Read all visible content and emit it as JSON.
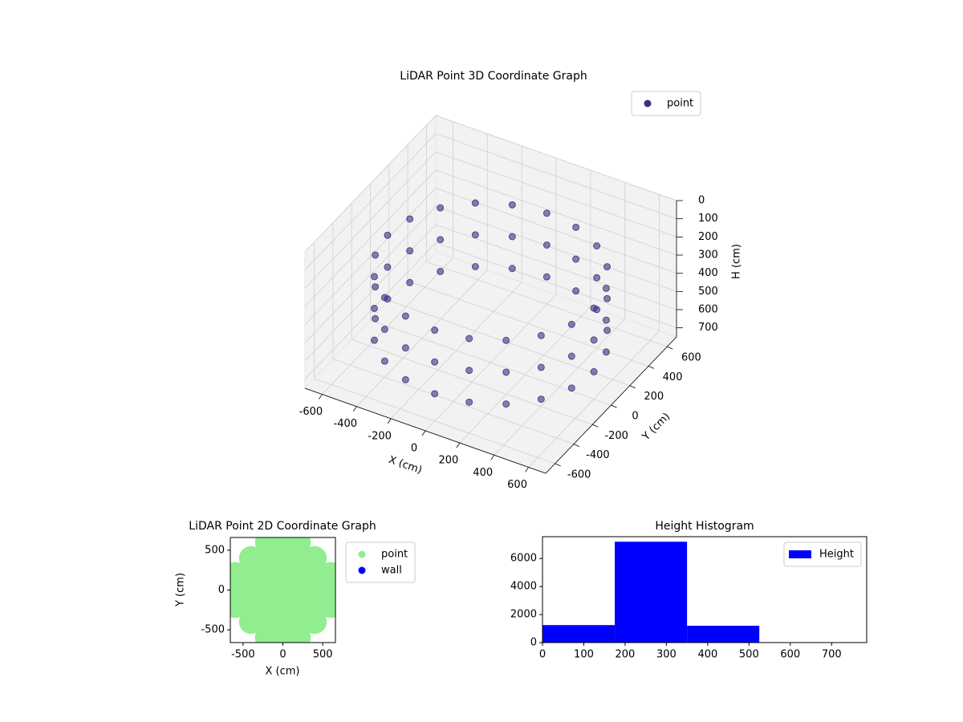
{
  "chart_data": [
    {
      "type": "scatter3d",
      "title": "LiDAR Point 3D Coordinate Graph",
      "xlabel": "X (cm)",
      "ylabel": "Y (cm)",
      "zlabel": "H (cm)",
      "xlim": [
        -700,
        700
      ],
      "ylim": [
        -700,
        700
      ],
      "zlim": [
        750,
        0
      ],
      "xticks": [
        -600,
        -400,
        -200,
        0,
        200,
        400,
        600
      ],
      "yticks": [
        -600,
        -400,
        -200,
        0,
        200,
        400,
        600
      ],
      "zticks": [
        0,
        100,
        200,
        300,
        400,
        500,
        600,
        700
      ],
      "legend": "upper right",
      "grid": true,
      "series": [
        {
          "name": "point",
          "color": "#3b2e7e",
          "x": [
            600,
            571,
            485,
            353,
            185,
            0,
            -185,
            -353,
            -485,
            -571,
            -600,
            -571,
            -485,
            -353,
            -185,
            0,
            185,
            353,
            485,
            571,
            600,
            571,
            485,
            353,
            185,
            0,
            -185,
            -353,
            -485,
            -571,
            -600,
            -571,
            -485,
            -353,
            -185,
            0,
            185,
            353,
            485,
            571,
            600,
            571,
            485,
            353,
            185,
            0,
            -185,
            -353,
            -485,
            -571,
            -600,
            -571,
            -485,
            -353,
            -185,
            0,
            185,
            353,
            485,
            571
          ],
          "y": [
            0,
            185,
            353,
            485,
            571,
            600,
            571,
            485,
            353,
            185,
            0,
            -185,
            -353,
            -485,
            -571,
            -600,
            -571,
            -485,
            -353,
            -185,
            0,
            185,
            353,
            485,
            571,
            600,
            571,
            485,
            353,
            185,
            0,
            -185,
            -353,
            -485,
            -571,
            -600,
            -571,
            -485,
            -353,
            -185,
            0,
            185,
            353,
            485,
            571,
            600,
            571,
            485,
            353,
            185,
            0,
            -185,
            -353,
            -485,
            -571,
            -600,
            -571,
            -485,
            -353,
            -185
          ],
          "z": [
            250,
            250,
            250,
            250,
            250,
            250,
            250,
            250,
            250,
            250,
            250,
            250,
            250,
            250,
            250,
            250,
            250,
            250,
            250,
            250,
            425,
            425,
            425,
            425,
            425,
            425,
            425,
            425,
            425,
            425,
            425,
            425,
            425,
            425,
            425,
            425,
            425,
            425,
            425,
            425,
            600,
            600,
            600,
            600,
            600,
            600,
            600,
            600,
            600,
            600,
            600,
            600,
            600,
            600,
            600,
            600,
            600,
            600,
            600,
            600
          ]
        }
      ]
    },
    {
      "type": "scatter",
      "title": "LiDAR Point 2D Coordinate Graph",
      "xlabel": "X (cm)",
      "ylabel": "Y (cm)",
      "xlim": [
        -660,
        660
      ],
      "ylim": [
        -660,
        660
      ],
      "xticks": [
        -500,
        0,
        500
      ],
      "yticks": [
        -500,
        0,
        500
      ],
      "legend": "outside upper left",
      "series": [
        {
          "name": "point",
          "color": "#90ee90",
          "x": [
            -600,
            -600,
            -600,
            -400,
            -400,
            -400,
            -400,
            -400,
            -200,
            -200,
            -200,
            -200,
            -200,
            -200,
            -200,
            0,
            0,
            0,
            0,
            0,
            0,
            0,
            200,
            200,
            200,
            200,
            200,
            200,
            200,
            400,
            400,
            400,
            400,
            400,
            600,
            600,
            600
          ],
          "y": [
            -200,
            0,
            200,
            -400,
            -200,
            0,
            200,
            400,
            -600,
            -400,
            -200,
            0,
            200,
            400,
            600,
            -600,
            -400,
            -200,
            0,
            200,
            400,
            600,
            -600,
            -400,
            -200,
            0,
            200,
            400,
            600,
            -400,
            -200,
            0,
            200,
            400,
            -200,
            0,
            200
          ]
        },
        {
          "name": "wall",
          "color": "#0000ff",
          "x": [],
          "y": []
        }
      ]
    },
    {
      "type": "histogram",
      "title": "Height Histogram",
      "name": "Height",
      "color": "#0000ff",
      "bins": [
        0,
        175,
        350,
        525,
        700
      ],
      "counts": [
        1250,
        7200,
        1200,
        0
      ],
      "xlim": [
        0,
        785
      ],
      "ylim": [
        0,
        7560
      ],
      "xticks": [
        0,
        100,
        200,
        300,
        400,
        500,
        600,
        700
      ],
      "yticks": [
        0,
        2000,
        4000,
        6000
      ],
      "legend": "upper right"
    }
  ]
}
